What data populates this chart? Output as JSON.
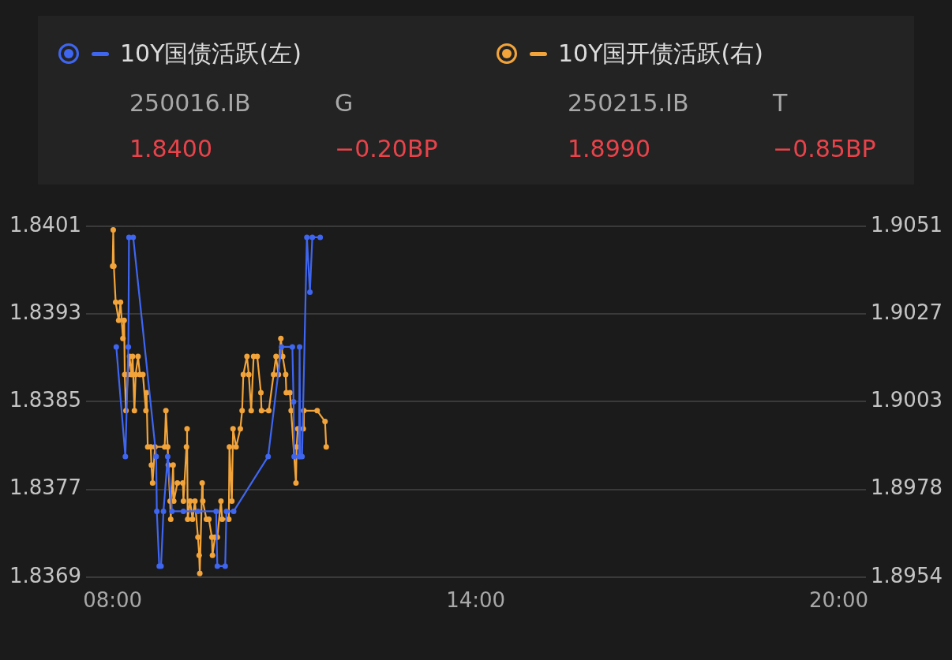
{
  "chart_data": {
    "type": "line",
    "series": [
      {
        "name": "10Y国债活跃(左)",
        "color": "#3f66f0",
        "axis": "y",
        "x": [
          8.06,
          8.21,
          8.26,
          8.27,
          8.34,
          8.72,
          8.73,
          8.77,
          8.8,
          8.84,
          8.91,
          8.98,
          9.17,
          9.41,
          9.71,
          9.73,
          9.86,
          9.88,
          10.0,
          10.57,
          10.79,
          10.97,
          10.99,
          11.0,
          11.08,
          11.09,
          11.1,
          11.13,
          11.21,
          11.26,
          11.3,
          11.43
        ],
        "values": [
          1.839,
          1.838,
          1.839,
          1.84,
          1.84,
          1.838,
          1.8375,
          1.837,
          1.837,
          1.8375,
          1.838,
          1.8375,
          1.8375,
          1.8375,
          1.8375,
          1.837,
          1.837,
          1.8375,
          1.8375,
          1.838,
          1.839,
          1.839,
          1.8385,
          1.838,
          1.838,
          1.839,
          1.838,
          1.838,
          1.84,
          1.8395,
          1.84,
          1.84
        ]
      },
      {
        "name": "10Y国开债活跃(右)",
        "color": "#f2a43a",
        "axis": "y2",
        "x": [
          8.0,
          8.01,
          8.02,
          8.05,
          8.1,
          8.13,
          8.17,
          8.19,
          8.2,
          8.22,
          8.25,
          8.28,
          8.31,
          8.33,
          8.36,
          8.38,
          8.42,
          8.45,
          8.5,
          8.55,
          8.56,
          8.58,
          8.63,
          8.64,
          8.66,
          8.7,
          8.86,
          8.88,
          8.91,
          8.92,
          8.95,
          8.96,
          9.0,
          9.01,
          9.07,
          9.16,
          9.17,
          9.22,
          9.23,
          9.24,
          9.28,
          9.32,
          9.36,
          9.41,
          9.43,
          9.44,
          9.48,
          9.49,
          9.55,
          9.59,
          9.64,
          9.65,
          9.69,
          9.73,
          9.79,
          9.81,
          9.92,
          9.93,
          9.97,
          9.99,
          10.04,
          10.11,
          10.14,
          10.16,
          10.22,
          10.25,
          10.29,
          10.33,
          10.39,
          10.45,
          10.46,
          10.58,
          10.66,
          10.7,
          10.74,
          10.78,
          10.81,
          10.86,
          10.87,
          10.93,
          10.95,
          11.03,
          11.04,
          11.06,
          11.15,
          11.16,
          11.38,
          11.51,
          11.53
        ],
        "values": [
          1.904,
          1.905,
          1.904,
          1.903,
          1.9025,
          1.903,
          1.902,
          1.9025,
          1.901,
          1.9,
          1.901,
          1.9015,
          1.901,
          1.9015,
          1.9,
          1.901,
          1.9015,
          1.901,
          1.901,
          1.9,
          1.9005,
          1.899,
          1.899,
          1.8985,
          1.898,
          1.899,
          1.899,
          1.9,
          1.899,
          1.8985,
          1.8975,
          1.897,
          1.8985,
          1.8975,
          1.898,
          1.898,
          1.8975,
          1.899,
          1.8995,
          1.897,
          1.8975,
          1.897,
          1.8975,
          1.8965,
          1.896,
          1.8955,
          1.898,
          1.8975,
          1.897,
          1.897,
          1.8965,
          1.896,
          1.8965,
          1.8965,
          1.8975,
          1.897,
          1.897,
          1.899,
          1.8975,
          1.8995,
          1.899,
          1.8995,
          1.9,
          1.901,
          1.9015,
          1.901,
          1.9,
          1.9015,
          1.9015,
          1.9005,
          1.9,
          1.9,
          1.901,
          1.9015,
          1.901,
          1.902,
          1.9015,
          1.901,
          1.9005,
          1.9005,
          1.9,
          1.898,
          1.899,
          1.8995,
          1.8995,
          1.9,
          1.9,
          1.8997,
          1.899
        ]
      }
    ],
    "xlim": [
      7.56,
      20.45
    ],
    "xticks": [
      {
        "value": 8,
        "label": "08:00"
      },
      {
        "value": 14,
        "label": "14:00"
      },
      {
        "value": 20,
        "label": "20:00"
      }
    ],
    "ylim": [
      1.8369,
      1.8401
    ],
    "yticks": [
      1.8369,
      1.8377,
      1.8385,
      1.8393,
      1.8401
    ],
    "y2lim": [
      1.8954,
      1.9051
    ],
    "y2ticks": [
      {
        "value": 1.8954,
        "label": "1.8954"
      },
      {
        "value": 1.897825,
        "label": "1.8978"
      },
      {
        "value": 1.90025,
        "label": "1.9003"
      },
      {
        "value": 1.902675,
        "label": "1.9027"
      },
      {
        "value": 1.9051,
        "label": "1.9051"
      }
    ],
    "annotations": [
      "250016.IB",
      "G",
      "1.8400",
      "−0.20BP",
      "250215.IB",
      "T",
      "1.8990",
      "−0.85BP"
    ],
    "grid": "y",
    "legend": "top",
    "marker": "circle",
    "line_style": "solid"
  }
}
